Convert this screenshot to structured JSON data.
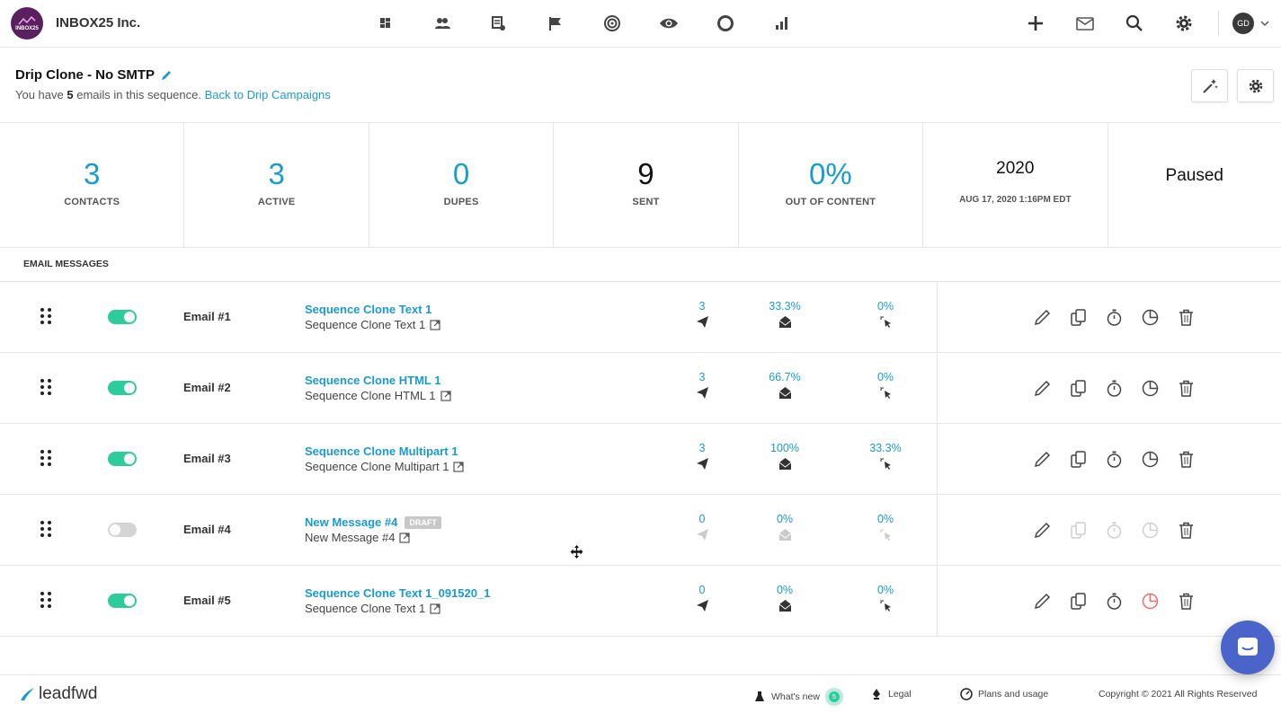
{
  "app": {
    "company_name": "INBOX25 Inc.",
    "logo_text": "INBOX25",
    "nav_icons": [
      "dashboard-icon",
      "contacts-icon",
      "campaigns-icon",
      "flag-icon",
      "target-icon",
      "eye-icon",
      "circle-icon",
      "bar-chart-icon"
    ],
    "right_icons": [
      "plus-icon",
      "mail-icon",
      "search-icon",
      "gear-icon"
    ],
    "user_initials": "GD"
  },
  "header": {
    "title": "Drip Clone - No SMTP",
    "sub_prefix": "You have",
    "email_count": "5",
    "sub_suffix": "emails in this sequence.",
    "back_link": "Back to Drip Campaigns"
  },
  "stats": {
    "contacts_value": "3",
    "contacts_label": "CONTACTS",
    "active_value": "3",
    "active_label": "ACTIVE",
    "dupes_value": "0",
    "dupes_label": "DUPES",
    "sent_value": "9",
    "sent_label": "SENT",
    "ooc_value": "0%",
    "ooc_label": "OUT OF CONTENT",
    "year": "2020",
    "date": "AUG 17, 2020 1:16PM EDT",
    "status": "Paused"
  },
  "section_label": "EMAIL MESSAGES",
  "messages": [
    {
      "num": "Email #1",
      "enabled": true,
      "title": "Sequence Clone Text 1",
      "subject": "Sequence Clone Text 1",
      "sent": "3",
      "open": "33.3%",
      "click": "0%",
      "draft": ""
    },
    {
      "num": "Email #2",
      "enabled": true,
      "title": "Sequence Clone HTML 1",
      "subject": "Sequence Clone HTML 1",
      "sent": "3",
      "open": "66.7%",
      "click": "0%",
      "draft": ""
    },
    {
      "num": "Email #3",
      "enabled": true,
      "title": "Sequence Clone Multipart 1",
      "subject": "Sequence Clone Multipart 1",
      "sent": "3",
      "open": "100%",
      "click": "33.3%",
      "draft": ""
    },
    {
      "num": "Email #4",
      "enabled": false,
      "title": "New Message #4",
      "subject": "New Message #4",
      "sent": "0",
      "open": "0%",
      "click": "0%",
      "draft": "DRAFT"
    },
    {
      "num": "Email #5",
      "enabled": true,
      "title": "Sequence Clone Text 1_091520_1",
      "subject": "Sequence Clone Text 1",
      "sent": "0",
      "open": "0%",
      "click": "0%",
      "draft": ""
    }
  ],
  "footer": {
    "brand": "leadfwd",
    "whats_new": "What's new",
    "whats_new_badge": "5",
    "legal": "Legal",
    "plans": "Plans and usage",
    "copyright": "Copyright © 2021 All Rights Reserved"
  },
  "colors": {
    "accent": "#1a9bd0",
    "toggle_on": "#2ecc9a",
    "chat": "#4a64c9",
    "warning": "#f06a6a"
  }
}
